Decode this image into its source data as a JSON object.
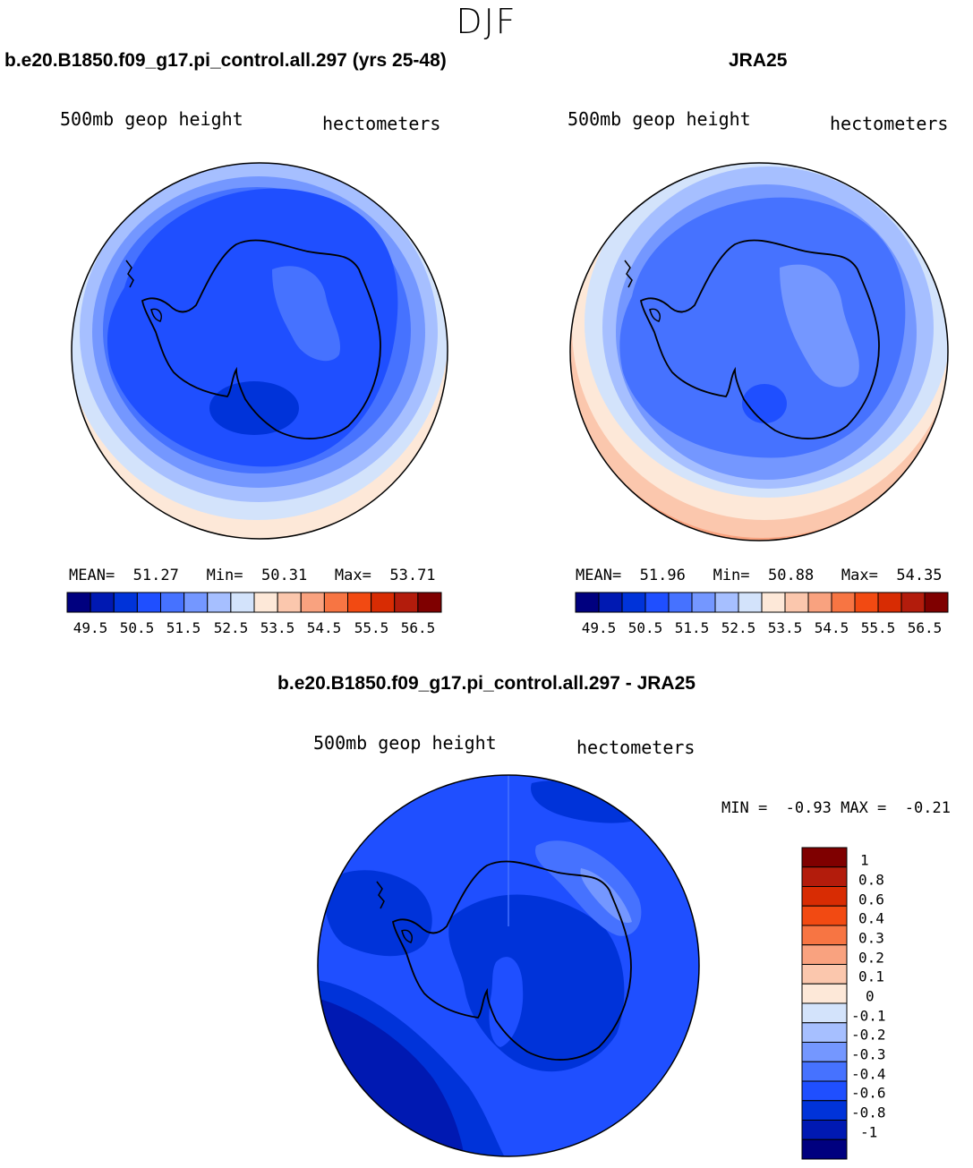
{
  "season": "DJF",
  "panels": {
    "model": {
      "title": "b.e20.B1850.f09_g17.pi_control.all.297 (yrs 25-48)",
      "variable": "500mb geop height",
      "units": "hectometers",
      "stats": {
        "mean_label": "MEAN=",
        "mean": "51.27",
        "min_label": "Min=",
        "min": "50.31",
        "max_label": "Max=",
        "max": "53.71"
      }
    },
    "obs": {
      "title": "JRA25",
      "variable": "500mb geop height",
      "units": "hectometers",
      "stats": {
        "mean_label": "MEAN=",
        "mean": "51.96",
        "min_label": "Min=",
        "min": "50.88",
        "max_label": "Max=",
        "max": "54.35"
      }
    },
    "diff": {
      "title": "b.e20.B1850.f09_g17.pi_control.all.297 - JRA25",
      "variable": "500mb geop height",
      "units": "hectometers",
      "stats": {
        "min_label": "MIN =",
        "min": "-0.93",
        "max_label": "MAX =",
        "max": "-0.21"
      }
    }
  },
  "colorbar_levels": [
    "49.5",
    "50.5",
    "51.5",
    "52.5",
    "53.5",
    "54.5",
    "55.5",
    "56.5"
  ],
  "diff_levels": [
    "1",
    "0.8",
    "0.6",
    "0.4",
    "0.3",
    "0.2",
    "0.1",
    "0",
    "-0.1",
    "-0.2",
    "-0.3",
    "-0.4",
    "-0.6",
    "-0.8",
    "-1"
  ],
  "palette": [
    "#00007f",
    "#0019b2",
    "#0033d9",
    "#1f4fff",
    "#4672ff",
    "#7497ff",
    "#a6bfff",
    "#d3e3fb",
    "#fde8d8",
    "#fbc7ad",
    "#f9a27f",
    "#f77543",
    "#f24a12",
    "#d82c03",
    "#b31c0c",
    "#7f0000"
  ],
  "diff_palette": [
    "#00007f",
    "#0019b2",
    "#0033d9",
    "#1f4fff",
    "#4672ff",
    "#7497ff",
    "#a6bfff",
    "#d3e3fb",
    "#fde8d8",
    "#fbc7ad",
    "#f9a27f",
    "#f77543",
    "#f24a12",
    "#d82c03",
    "#b31c0c",
    "#7f0000"
  ]
}
